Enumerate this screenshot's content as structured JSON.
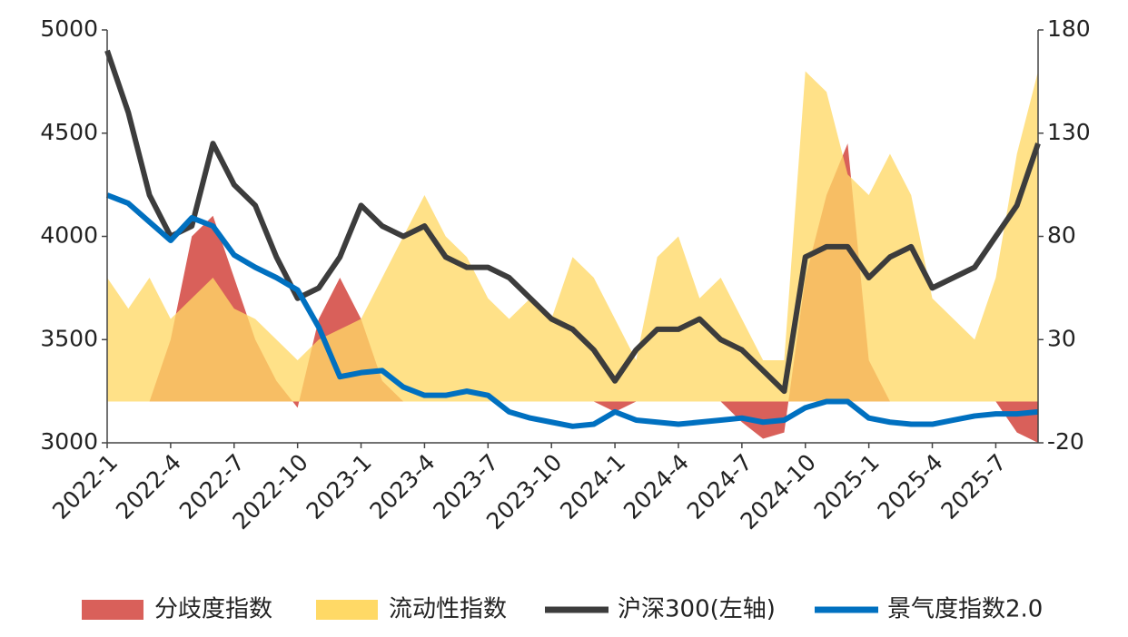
{
  "chart_data": {
    "type": "line",
    "categories": [
      "2022-1",
      null,
      null,
      "2022-4",
      null,
      null,
      "2022-7",
      null,
      null,
      "2022-10",
      null,
      null,
      "2023-1",
      null,
      null,
      "2023-4",
      null,
      null,
      "2023-7",
      null,
      null,
      "2023-10",
      null,
      null,
      "2024-1",
      null,
      null,
      "2024-4",
      null,
      null,
      "2024-7",
      null,
      null,
      "2024-10",
      null,
      null,
      "2025-1",
      null,
      null,
      "2025-4",
      null,
      null,
      "2025-7",
      null,
      null
    ],
    "ylim": [
      3000,
      5000
    ],
    "yticks": [
      3000,
      3500,
      4000,
      4500,
      5000
    ],
    "y2lim": [
      -20,
      180
    ],
    "y2ticks": [
      -20,
      30,
      80,
      130,
      180
    ],
    "legend": "bottom",
    "series": [
      {
        "name": "分歧度指数",
        "type": "area",
        "axis": "y2",
        "color": "#d9605a",
        "values": [
          0,
          0,
          0,
          30,
          80,
          90,
          60,
          30,
          10,
          -3,
          40,
          60,
          40,
          10,
          0,
          0,
          0,
          0,
          0,
          0,
          0,
          0,
          0,
          0,
          -5,
          0,
          0,
          0,
          0,
          0,
          -10,
          -18,
          -15,
          60,
          100,
          125,
          20,
          0,
          0,
          0,
          0,
          0,
          0,
          -15,
          -20
        ]
      },
      {
        "name": "流动性指数",
        "type": "area",
        "axis": "y2",
        "color": "#ffd966",
        "values": [
          60,
          45,
          60,
          40,
          50,
          60,
          45,
          40,
          30,
          20,
          30,
          35,
          40,
          60,
          80,
          100,
          80,
          70,
          50,
          40,
          50,
          40,
          70,
          60,
          40,
          20,
          70,
          80,
          50,
          60,
          40,
          20,
          20,
          160,
          150,
          110,
          100,
          120,
          100,
          50,
          40,
          30,
          60,
          120,
          160
        ]
      },
      {
        "name": "沪深300(左轴)",
        "type": "line",
        "axis": "y",
        "color": "#3c3c3c",
        "values": [
          4900,
          4600,
          4200,
          4000,
          4050,
          4450,
          4250,
          4150,
          3900,
          3700,
          3750,
          3900,
          4150,
          4050,
          4000,
          4050,
          3900,
          3850,
          3850,
          3800,
          3700,
          3600,
          3550,
          3450,
          3300,
          3450,
          3550,
          3550,
          3600,
          3500,
          3450,
          3350,
          3250,
          3900,
          3950,
          3950,
          3800,
          3900,
          3950,
          3750,
          3800,
          3850,
          4000,
          4150,
          4450
        ]
      },
      {
        "name": "景气度指数2.0",
        "type": "line",
        "axis": "y2",
        "color": "#0070c0",
        "values": [
          100,
          96,
          87,
          78,
          89,
          85,
          71,
          65,
          60,
          54,
          36,
          12,
          14,
          15,
          7,
          3,
          3,
          5,
          3,
          -5,
          -8,
          -10,
          -12,
          -11,
          -5,
          -9,
          -10,
          -11,
          -10,
          -9,
          -8,
          -10,
          -9,
          -3,
          0,
          0,
          -8,
          -10,
          -11,
          -11,
          -9,
          -7,
          -6,
          -6,
          -5
        ]
      }
    ]
  }
}
